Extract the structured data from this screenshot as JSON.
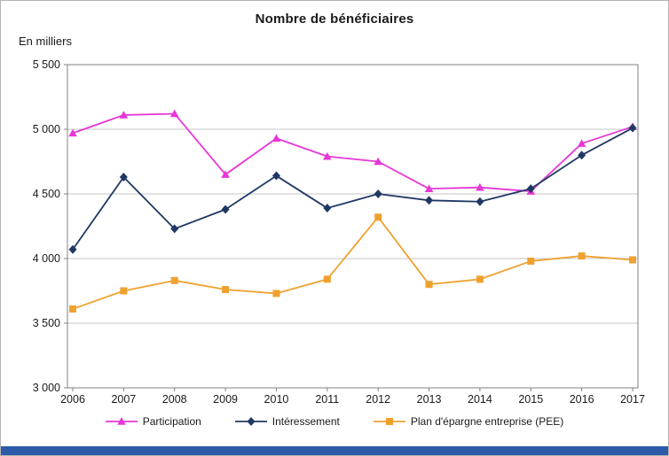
{
  "title": "Nombre de bénéficiaires",
  "y_axis_unit_label": "En milliers",
  "footer_bar_color": "#2D5BA9",
  "colors": {
    "grid": "#c6c6c6",
    "plot_border": "#808080",
    "axis_text": "#1a1a1a"
  },
  "chart_data": {
    "type": "line",
    "x": [
      "2006",
      "2007",
      "2008",
      "2009",
      "2010",
      "2011",
      "2012",
      "2013",
      "2014",
      "2015",
      "2016",
      "2017"
    ],
    "series": [
      {
        "name": "Participation",
        "color": "#E637D8",
        "marker": "triangle",
        "values": [
          4970,
          5110,
          5120,
          4650,
          4930,
          4790,
          4750,
          4540,
          4550,
          4520,
          4890,
          5020
        ]
      },
      {
        "name": "Intéressement",
        "color": "#1F3864",
        "marker": "diamond",
        "values": [
          4070,
          4630,
          4230,
          4380,
          4640,
          4390,
          4500,
          4450,
          4440,
          4540,
          4800,
          5010
        ]
      },
      {
        "name": "Plan d'épargne entreprise (PEE)",
        "color": "#EFA12F",
        "marker": "square",
        "values": [
          3610,
          3750,
          3830,
          3760,
          3730,
          3840,
          4320,
          3800,
          3840,
          3980,
          4020,
          3990
        ]
      }
    ],
    "ylim": [
      3000,
      5500
    ],
    "ytick_step": 500,
    "ytick_labels": [
      "3 000",
      "3 500",
      "4 000",
      "4 500",
      "5 000",
      "5 500"
    ],
    "grid": true,
    "legend_position": "bottom"
  }
}
